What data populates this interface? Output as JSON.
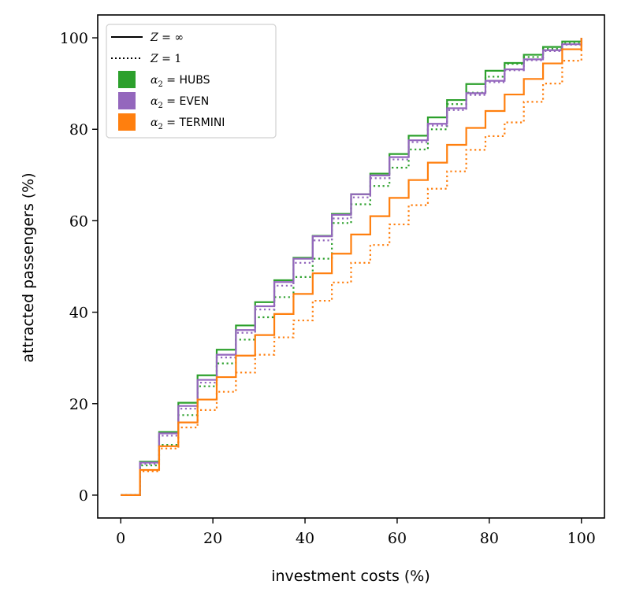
{
  "chart_data": {
    "type": "line",
    "step": "post",
    "xlabel": "investment costs (%)",
    "ylabel": "attracted passengers (%)",
    "xlim": [
      -5,
      105
    ],
    "ylim": [
      -5,
      105
    ],
    "xticks": [
      0,
      20,
      40,
      60,
      80,
      100
    ],
    "yticks": [
      0,
      20,
      40,
      60,
      80,
      100
    ],
    "xtick_labels": [
      "0",
      "20",
      "40",
      "60",
      "80",
      "100"
    ],
    "ytick_labels": [
      "0",
      "20",
      "40",
      "60",
      "80",
      "100"
    ],
    "x": [
      0,
      4.17,
      8.33,
      12.5,
      16.67,
      20.83,
      25,
      29.17,
      33.33,
      37.5,
      41.67,
      45.83,
      50,
      54.17,
      58.33,
      62.5,
      66.67,
      70.83,
      75,
      79.17,
      83.33,
      87.5,
      91.67,
      95.83,
      100
    ],
    "series": [
      {
        "name": "hubs_inf",
        "color": "#2ca02c",
        "style": "solid",
        "values": [
          0,
          7.3,
          13.8,
          20.2,
          26.2,
          31.8,
          37.1,
          42.2,
          47.0,
          51.9,
          56.7,
          61.5,
          65.8,
          70.3,
          74.6,
          78.6,
          82.6,
          86.4,
          89.9,
          92.8,
          94.5,
          96.3,
          98.0,
          99.2,
          100
        ]
      },
      {
        "name": "hubs_1",
        "color": "#2ca02c",
        "style": "dotted",
        "values": [
          0,
          6.5,
          11.0,
          17.5,
          23.8,
          28.8,
          34.0,
          38.9,
          43.3,
          47.7,
          51.7,
          59.5,
          63.6,
          67.6,
          71.6,
          75.6,
          80.0,
          85.5,
          88.0,
          91.5,
          94.3,
          95.8,
          97.6,
          98.8,
          100
        ]
      },
      {
        "name": "even_inf",
        "color": "#9467bd",
        "style": "solid",
        "values": [
          0,
          7.1,
          13.5,
          19.5,
          25.2,
          30.7,
          36.1,
          41.3,
          46.6,
          51.7,
          56.6,
          61.3,
          65.8,
          69.9,
          73.9,
          77.6,
          81.2,
          84.6,
          87.9,
          90.6,
          93.1,
          95.3,
          97.3,
          98.6,
          100
        ]
      },
      {
        "name": "even_1",
        "color": "#9467bd",
        "style": "dotted",
        "values": [
          0,
          6.8,
          13.0,
          18.9,
          24.6,
          30.1,
          35.5,
          40.6,
          45.8,
          50.8,
          55.7,
          60.5,
          65.1,
          69.3,
          73.4,
          77.2,
          80.8,
          84.2,
          87.5,
          90.3,
          92.9,
          95.1,
          97.1,
          98.5,
          100
        ]
      },
      {
        "name": "termini_inf",
        "color": "#ff7f0e",
        "style": "solid",
        "values": [
          0,
          5.5,
          10.7,
          15.9,
          20.9,
          25.8,
          30.5,
          35.0,
          39.6,
          44.0,
          48.5,
          52.8,
          57.0,
          61.0,
          65.0,
          68.9,
          72.7,
          76.6,
          80.3,
          84.0,
          87.6,
          91.0,
          94.4,
          97.5,
          100
        ]
      },
      {
        "name": "termini_1",
        "color": "#ff7f0e",
        "style": "dotted",
        "values": [
          0,
          5.2,
          10.2,
          14.8,
          18.6,
          22.6,
          26.8,
          30.7,
          34.5,
          38.2,
          42.5,
          46.5,
          50.8,
          54.7,
          59.2,
          63.4,
          67.0,
          70.8,
          75.5,
          78.5,
          81.5,
          86.0,
          90.0,
          95.0,
          100
        ]
      }
    ],
    "legend": {
      "placement": "top-left",
      "entries": [
        {
          "kind": "line",
          "style": "solid",
          "color": "#000000",
          "math": "Z",
          "eq": " = ",
          "value": "∞"
        },
        {
          "kind": "line",
          "style": "dotted",
          "color": "#000000",
          "math": "Z",
          "eq": " = ",
          "value": "1"
        },
        {
          "kind": "patch",
          "color": "#2ca02c",
          "math": "α",
          "sub": "2",
          "eq": " = ",
          "value": "HUBS"
        },
        {
          "kind": "patch",
          "color": "#9467bd",
          "math": "α",
          "sub": "2",
          "eq": " = ",
          "value": "EVEN"
        },
        {
          "kind": "patch",
          "color": "#ff7f0e",
          "math": "α",
          "sub": "2",
          "eq": " = ",
          "value": "TERMINI"
        }
      ]
    }
  }
}
